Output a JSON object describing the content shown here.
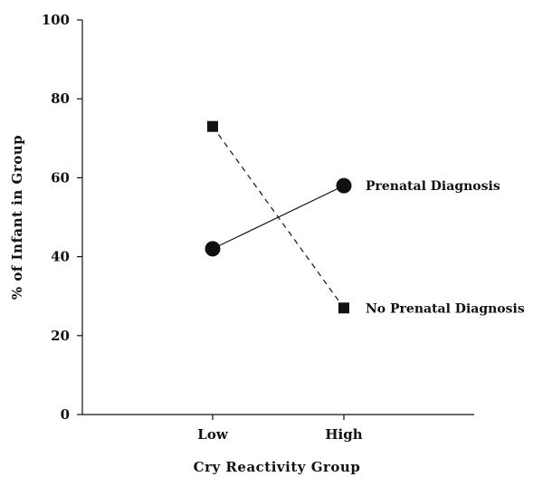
{
  "chart_data": {
    "type": "line",
    "title": "",
    "xlabel": "Cry Reactivity Group",
    "ylabel": "% of Infant in Group",
    "categories": [
      "Low",
      "High"
    ],
    "ylim": [
      0,
      100
    ],
    "yticks": [
      "0",
      "20",
      "40",
      "60",
      "80",
      "100"
    ],
    "grid": false,
    "series": [
      {
        "name": "Prenatal Diagnosis",
        "values": [
          42,
          58
        ],
        "marker": "circle",
        "line": "solid",
        "color": "#111111"
      },
      {
        "name": "No Prenatal Diagnosis",
        "values": [
          73,
          27
        ],
        "marker": "square",
        "line": "dashed",
        "color": "#111111"
      }
    ]
  }
}
